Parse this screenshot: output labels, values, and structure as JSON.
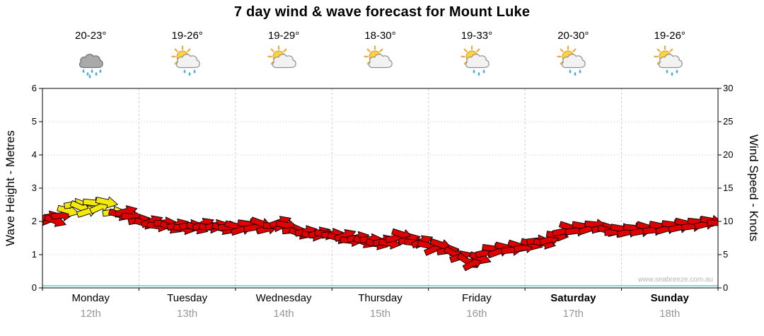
{
  "title": "7 day wind & wave forecast for Mount Luke",
  "watermark": "www.seabreeze.com.au",
  "axes": {
    "left_label": "Wave Height - Metres",
    "right_label": "Wind Speed - Knots",
    "left_ticks": [
      "0",
      "1",
      "2",
      "3",
      "4",
      "5",
      "6"
    ],
    "right_ticks": [
      "0",
      "5",
      "10",
      "15",
      "20",
      "25",
      "30"
    ]
  },
  "days": [
    {
      "name": "Monday",
      "date": "12th",
      "temp": "20-23°",
      "icon": "rain",
      "weekend": false
    },
    {
      "name": "Tuesday",
      "date": "13th",
      "temp": "19-26°",
      "icon": "sun-shower",
      "weekend": false
    },
    {
      "name": "Wednesday",
      "date": "14th",
      "temp": "19-29°",
      "icon": "sun-cloud",
      "weekend": false
    },
    {
      "name": "Thursday",
      "date": "15th",
      "temp": "18-30°",
      "icon": "sun-cloud",
      "weekend": false
    },
    {
      "name": "Friday",
      "date": "16th",
      "temp": "19-33°",
      "icon": "sun-shower",
      "weekend": false
    },
    {
      "name": "Saturday",
      "date": "17th",
      "temp": "20-30°",
      "icon": "sun-shower",
      "weekend": true
    },
    {
      "name": "Sunday",
      "date": "18th",
      "temp": "19-26°",
      "icon": "sun-shower",
      "weekend": true
    }
  ],
  "chart_data": {
    "type": "wind-arrow-series",
    "title": "7 day wind & wave forecast for Mount Luke",
    "x_categories": [
      "Monday 12th",
      "Tuesday 13th",
      "Wednesday 14th",
      "Thursday 15th",
      "Friday 16th",
      "Saturday 17th",
      "Sunday 18th"
    ],
    "left_axis": {
      "label": "Wave Height - Metres",
      "range": [
        0,
        6
      ]
    },
    "right_axis": {
      "label": "Wind Speed - Knots",
      "range": [
        0,
        30
      ]
    },
    "grid": true,
    "colors": {
      "normal": "#e10000",
      "strong": "#f5e80c",
      "outline": "#000000",
      "zero_line": "#63c8c8",
      "grid": "#c9c9c9"
    },
    "legend": "arrow color: yellow = stronger gusts, red = normal; arrow height = wind speed (knots, right axis)",
    "arrows": [
      [
        0.0,
        10.3,
        8,
        "r"
      ],
      [
        0.01,
        10.7,
        -14,
        "r"
      ],
      [
        0.019,
        10.1,
        20,
        "r"
      ],
      [
        0.029,
        10.9,
        -6,
        "r"
      ],
      [
        0.038,
        11.6,
        15,
        "y"
      ],
      [
        0.048,
        12.6,
        -10,
        "y"
      ],
      [
        0.057,
        12.1,
        24,
        "y"
      ],
      [
        0.067,
        11.5,
        -18,
        "y"
      ],
      [
        0.076,
        12.8,
        6,
        "y"
      ],
      [
        0.086,
        12.2,
        -24,
        "y"
      ],
      [
        0.095,
        12.9,
        12,
        "y"
      ],
      [
        0.105,
        11.4,
        -8,
        "y"
      ],
      [
        0.114,
        11.0,
        18,
        "r"
      ],
      [
        0.124,
        11.5,
        -15,
        "r"
      ],
      [
        0.133,
        10.7,
        4,
        "r"
      ],
      [
        0.143,
        10.2,
        -10,
        "r"
      ],
      [
        0.152,
        9.7,
        16,
        "r"
      ],
      [
        0.162,
        10.0,
        -20,
        "r"
      ],
      [
        0.171,
        9.3,
        8,
        "r"
      ],
      [
        0.181,
        9.8,
        -4,
        "r"
      ],
      [
        0.19,
        9.1,
        22,
        "r"
      ],
      [
        0.2,
        9.5,
        -16,
        "r"
      ],
      [
        0.21,
        8.9,
        10,
        "r"
      ],
      [
        0.219,
        9.4,
        -8,
        "r"
      ],
      [
        0.229,
        9.0,
        18,
        "r"
      ],
      [
        0.238,
        9.6,
        -22,
        "r"
      ],
      [
        0.248,
        9.1,
        6,
        "r"
      ],
      [
        0.257,
        9.4,
        -12,
        "r"
      ],
      [
        0.267,
        8.9,
        20,
        "r"
      ],
      [
        0.276,
        9.2,
        -6,
        "r"
      ],
      [
        0.286,
        9.3,
        14,
        "r"
      ],
      [
        0.295,
        8.8,
        -18,
        "r"
      ],
      [
        0.305,
        9.6,
        8,
        "r"
      ],
      [
        0.314,
        9.1,
        -10,
        "r"
      ],
      [
        0.324,
        9.7,
        20,
        "r"
      ],
      [
        0.333,
        8.9,
        -14,
        "r"
      ],
      [
        0.343,
        9.3,
        4,
        "r"
      ],
      [
        0.352,
        9.9,
        -20,
        "r"
      ],
      [
        0.362,
        9.4,
        12,
        "r"
      ],
      [
        0.371,
        8.7,
        -6,
        "r"
      ],
      [
        0.381,
        8.2,
        18,
        "r"
      ],
      [
        0.39,
        8.5,
        -12,
        "r"
      ],
      [
        0.4,
        7.9,
        8,
        "r"
      ],
      [
        0.41,
        8.3,
        -16,
        "r"
      ],
      [
        0.419,
        8.1,
        10,
        "r"
      ],
      [
        0.429,
        8.1,
        -8,
        "r"
      ],
      [
        0.438,
        7.5,
        16,
        "r"
      ],
      [
        0.448,
        7.9,
        -20,
        "r"
      ],
      [
        0.457,
        7.1,
        6,
        "r"
      ],
      [
        0.467,
        7.6,
        -12,
        "r"
      ],
      [
        0.476,
        6.9,
        22,
        "r"
      ],
      [
        0.486,
        7.3,
        -4,
        "r"
      ],
      [
        0.495,
        6.6,
        14,
        "r"
      ],
      [
        0.505,
        7.1,
        -18,
        "r"
      ],
      [
        0.514,
        6.7,
        8,
        "r"
      ],
      [
        0.524,
        7.5,
        -10,
        "r"
      ],
      [
        0.533,
        8.0,
        18,
        "r"
      ],
      [
        0.543,
        7.3,
        -14,
        "r"
      ],
      [
        0.552,
        6.8,
        6,
        "r"
      ],
      [
        0.562,
        7.0,
        -22,
        "r"
      ],
      [
        0.571,
        6.4,
        12,
        "r"
      ],
      [
        0.581,
        5.9,
        -24,
        "r"
      ],
      [
        0.59,
        6.5,
        18,
        "r"
      ],
      [
        0.6,
        5.6,
        -8,
        "r"
      ],
      [
        0.61,
        5.1,
        28,
        "r"
      ],
      [
        0.619,
        4.7,
        -18,
        "r"
      ],
      [
        0.629,
        4.0,
        34,
        "r"
      ],
      [
        0.638,
        3.7,
        -28,
        "r"
      ],
      [
        0.648,
        4.5,
        20,
        "r"
      ],
      [
        0.657,
        5.3,
        -12,
        "r"
      ],
      [
        0.667,
        5.9,
        8,
        "r"
      ],
      [
        0.676,
        5.5,
        -20,
        "r"
      ],
      [
        0.686,
        6.1,
        14,
        "r"
      ],
      [
        0.695,
        5.7,
        -6,
        "r"
      ],
      [
        0.705,
        6.3,
        18,
        "r"
      ],
      [
        0.714,
        6.1,
        -10,
        "r"
      ],
      [
        0.724,
        6.6,
        16,
        "r"
      ],
      [
        0.733,
        7.1,
        -6,
        "r"
      ],
      [
        0.743,
        6.7,
        12,
        "r"
      ],
      [
        0.752,
        7.3,
        -16,
        "r"
      ],
      [
        0.762,
        7.9,
        8,
        "r"
      ],
      [
        0.771,
        8.5,
        -12,
        "r"
      ],
      [
        0.781,
        9.1,
        18,
        "r"
      ],
      [
        0.79,
        8.6,
        -8,
        "r"
      ],
      [
        0.8,
        9.3,
        10,
        "r"
      ],
      [
        0.81,
        8.9,
        -18,
        "r"
      ],
      [
        0.819,
        9.5,
        6,
        "r"
      ],
      [
        0.829,
        9.0,
        -12,
        "r"
      ],
      [
        0.838,
        8.6,
        16,
        "r"
      ],
      [
        0.848,
        8.4,
        -4,
        "r"
      ],
      [
        0.857,
        8.9,
        10,
        "r"
      ],
      [
        0.867,
        8.4,
        -14,
        "r"
      ],
      [
        0.876,
        9.0,
        6,
        "r"
      ],
      [
        0.886,
        8.5,
        -10,
        "r"
      ],
      [
        0.895,
        9.1,
        18,
        "r"
      ],
      [
        0.905,
        8.7,
        -6,
        "r"
      ],
      [
        0.914,
        9.3,
        12,
        "r"
      ],
      [
        0.924,
        8.9,
        -16,
        "r"
      ],
      [
        0.933,
        9.5,
        8,
        "r"
      ],
      [
        0.943,
        9.1,
        -12,
        "r"
      ],
      [
        0.952,
        9.7,
        14,
        "r"
      ],
      [
        0.962,
        9.3,
        -8,
        "r"
      ],
      [
        0.971,
        9.9,
        6,
        "r"
      ],
      [
        0.981,
        9.6,
        -14,
        "r"
      ],
      [
        0.99,
        10.1,
        10,
        "r"
      ],
      [
        1.0,
        9.8,
        0,
        "r"
      ]
    ]
  }
}
